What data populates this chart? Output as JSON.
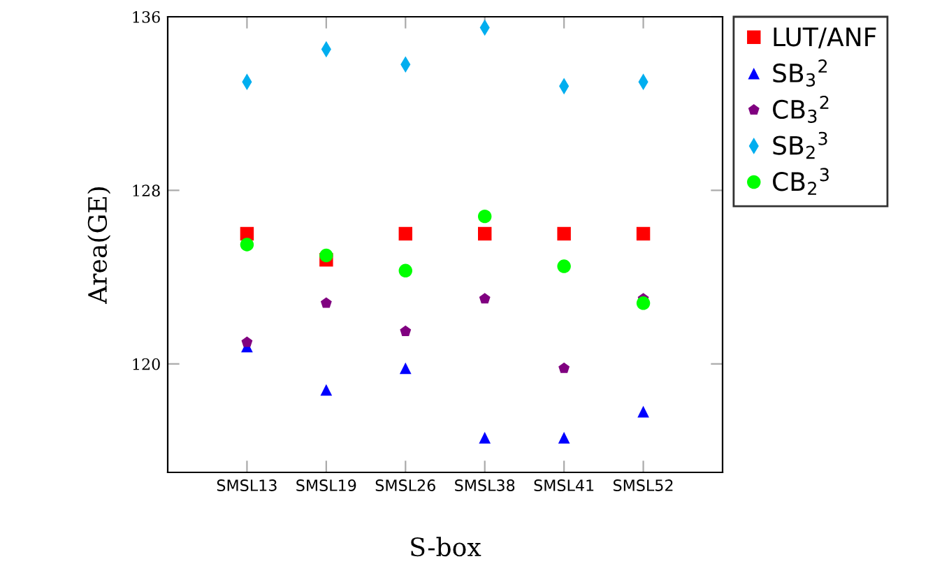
{
  "chart_data": {
    "type": "scatter",
    "xlabel": "S-box",
    "ylabel": "Area(GE)",
    "categories": [
      "SMSL13",
      "SMSL19",
      "SMSL26",
      "SMSL38",
      "SMSL41",
      "SMSL52"
    ],
    "ylim": [
      115,
      136
    ],
    "yticks": [
      120,
      128,
      136
    ],
    "grid": false,
    "legend": "top right",
    "series": [
      {
        "name": "LUT/ANF",
        "color": "#ff0000",
        "marker": "square",
        "values": [
          126.0,
          124.8,
          126.0,
          126.0,
          126.0,
          126.0
        ]
      },
      {
        "name": "SB$_{3}$$^{2}$",
        "color": "#0000ff",
        "marker": "triangle",
        "values": [
          120.8,
          118.8,
          119.8,
          116.6,
          116.6,
          117.8
        ]
      },
      {
        "name": "CB$_{3}$$^{2}$",
        "color": "#800080",
        "values": [
          121.0,
          122.8,
          121.5,
          123.0,
          119.8,
          123.0
        ]
      },
      {
        "name": "SB$_{2}$$^{3}$",
        "color": "#00aeef",
        "marker": "diamond",
        "values": [
          133.0,
          134.5,
          133.8,
          135.5,
          132.8,
          133.0
        ]
      },
      {
        "name": "CB$_{2}$$^{3}$",
        "color": "#00ff00",
        "marker": "circle",
        "values": [
          125.5,
          125.0,
          124.3,
          126.8,
          124.5,
          122.8
        ]
      }
    ]
  }
}
